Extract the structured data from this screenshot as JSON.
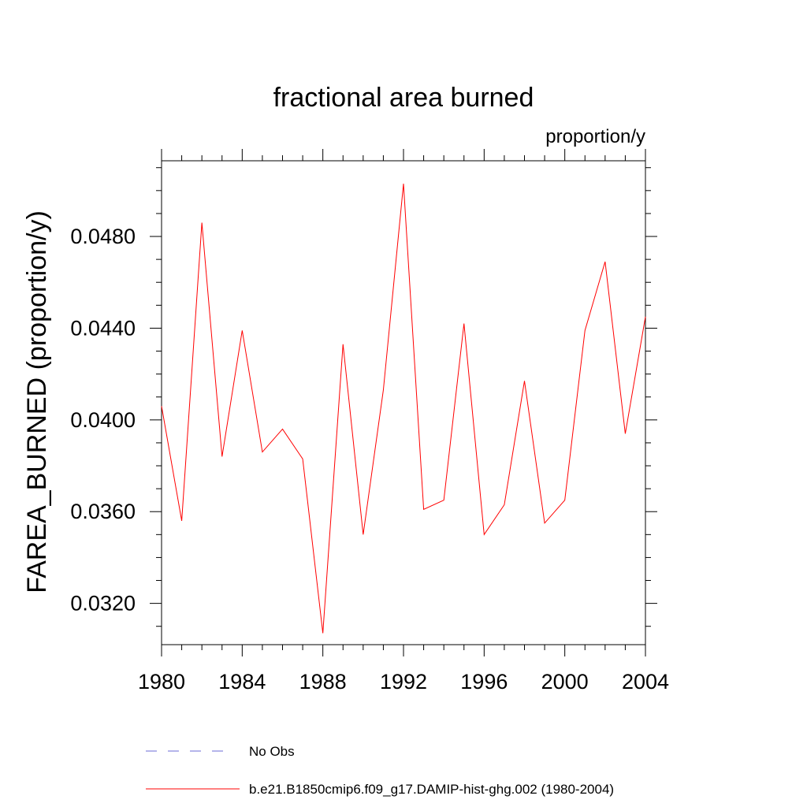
{
  "chart_data": {
    "type": "line",
    "title": "fractional area burned",
    "subtitle": "proportion/y",
    "ylabel": "FAREA_BURNED  (proportion/y)",
    "xlabel": "",
    "xlim": [
      1980,
      2004
    ],
    "ylim": [
      0.0302,
      0.0513
    ],
    "x_ticks": [
      1980,
      1984,
      1988,
      1992,
      1996,
      2000,
      2004
    ],
    "x_tick_labels": [
      "1980",
      "1984",
      "1988",
      "1992",
      "1996",
      "2000",
      "2004"
    ],
    "y_ticks": [
      0.032,
      0.036,
      0.04,
      0.044,
      0.048
    ],
    "y_tick_labels": [
      "0.0320",
      "0.0360",
      "0.0400",
      "0.0440",
      "0.0480"
    ],
    "grid": false,
    "legend_position": "bottom",
    "series": [
      {
        "name": "b.e21.B1850cmip6.f09_g17.DAMIP-hist-ghg.002 (1980-2004)",
        "color": "#ff0000",
        "style": "solid",
        "x": [
          1980,
          1981,
          1982,
          1983,
          1984,
          1985,
          1986,
          1987,
          1988,
          1989,
          1990,
          1991,
          1992,
          1993,
          1994,
          1995,
          1996,
          1997,
          1998,
          1999,
          2000,
          2001,
          2002,
          2003,
          2004
        ],
        "y": [
          0.0406,
          0.0356,
          0.0486,
          0.0384,
          0.0439,
          0.0386,
          0.0396,
          0.0383,
          0.0307,
          0.0433,
          0.035,
          0.0413,
          0.0503,
          0.0361,
          0.0365,
          0.0442,
          0.035,
          0.0363,
          0.0417,
          0.0355,
          0.0365,
          0.0439,
          0.0469,
          0.0394,
          0.0445
        ]
      }
    ],
    "legend": [
      {
        "label": "No Obs",
        "color": "#6b6bd6",
        "style": "dashed"
      },
      {
        "label": "b.e21.B1850cmip6.f09_g17.DAMIP-hist-ghg.002 (1980-2004)",
        "color": "#ff0000",
        "style": "solid"
      }
    ]
  }
}
